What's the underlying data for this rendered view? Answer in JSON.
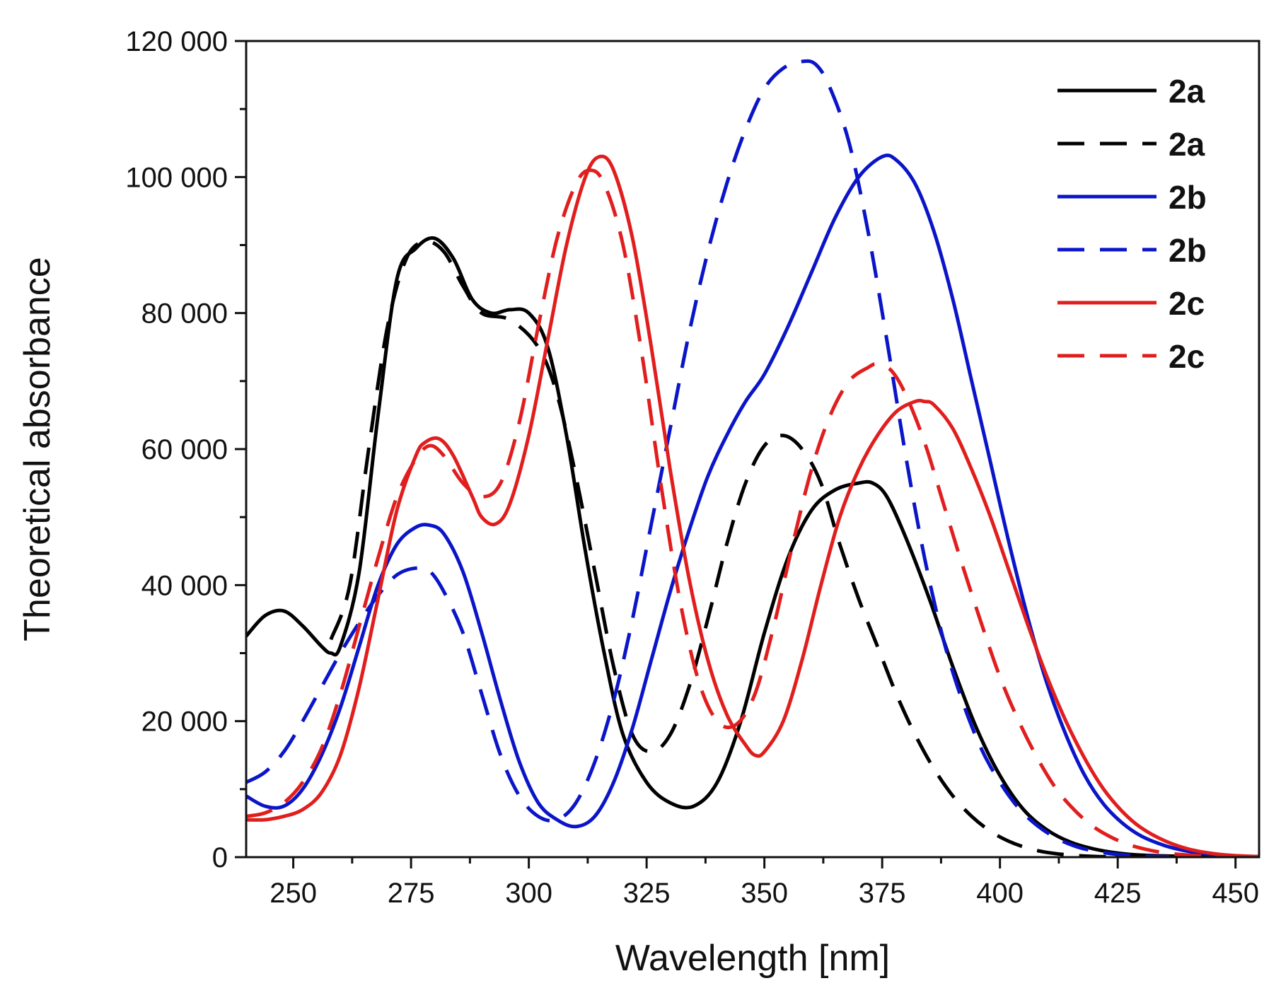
{
  "chart_data": {
    "type": "line",
    "title": "",
    "xlabel": "Wavelength [nm]",
    "ylabel": "Theoretical absorbance",
    "xlim": [
      240,
      455
    ],
    "ylim": [
      0,
      120000
    ],
    "xticks": [
      250,
      275,
      300,
      325,
      350,
      375,
      400,
      425,
      450
    ],
    "yticks": [
      0,
      20000,
      40000,
      60000,
      80000,
      100000,
      120000
    ],
    "xtick_labels": [
      "250",
      "275",
      "300",
      "325",
      "350",
      "375",
      "400",
      "425",
      "450"
    ],
    "ytick_labels": [
      "0",
      "20 000",
      "40 000",
      "60 000",
      "80 000",
      "100 000",
      "120 000"
    ],
    "grid": false,
    "legend_position": "top-right",
    "series": [
      {
        "name": "2a",
        "style": "solid",
        "color": "#000000",
        "x": [
          240,
          244,
          248,
          252,
          256,
          258,
          260,
          264,
          268,
          272,
          276,
          280,
          284,
          288,
          292,
          296,
          300,
          304,
          308,
          312,
          316,
          320,
          325,
          330,
          335,
          340,
          345,
          350,
          355,
          360,
          365,
          370,
          373,
          376,
          380,
          385,
          390,
          395,
          400,
          405,
          410,
          415,
          420,
          425,
          430,
          440,
          450,
          455
        ],
        "y": [
          32500,
          35500,
          36200,
          34000,
          31000,
          30000,
          31000,
          42000,
          65000,
          85000,
          89500,
          91000,
          88000,
          82000,
          80000,
          80500,
          80000,
          75000,
          62000,
          45000,
          30000,
          18000,
          11000,
          8000,
          7500,
          11000,
          20000,
          33000,
          44000,
          51000,
          54000,
          55000,
          55000,
          53000,
          47000,
          38000,
          28000,
          19000,
          12000,
          7000,
          4000,
          2200,
          1200,
          600,
          300,
          100,
          30,
          10
        ]
      },
      {
        "name": "2a",
        "style": "dashed",
        "color": "#000000",
        "x": [
          258,
          262,
          266,
          270,
          274,
          278,
          282,
          286,
          290,
          296,
          302,
          306,
          310,
          314,
          318,
          322,
          326,
          330,
          334,
          338,
          342,
          346,
          350,
          354,
          358,
          362,
          366,
          370,
          374,
          378,
          382,
          386,
          390,
          394,
          398,
          402,
          406,
          410,
          415,
          420,
          425
        ],
        "y": [
          32000,
          40000,
          60000,
          78000,
          88000,
          90500,
          89000,
          84000,
          80000,
          79000,
          75000,
          68000,
          56000,
          42000,
          28000,
          18000,
          15500,
          18000,
          25000,
          35000,
          46000,
          55000,
          60500,
          62000,
          60000,
          55000,
          46000,
          38000,
          31000,
          24000,
          18000,
          13000,
          9000,
          6000,
          3800,
          2300,
          1300,
          700,
          300,
          100,
          30
        ]
      },
      {
        "name": "2b",
        "style": "solid",
        "color": "#0b15c8",
        "x": [
          240,
          244,
          248,
          252,
          256,
          260,
          264,
          268,
          272,
          276,
          279,
          282,
          286,
          290,
          294,
          298,
          302,
          306,
          310,
          314,
          318,
          322,
          326,
          330,
          334,
          338,
          342,
          346,
          350,
          355,
          360,
          365,
          370,
          375,
          378,
          382,
          386,
          390,
          394,
          398,
          402,
          406,
          410,
          414,
          418,
          422,
          426,
          430,
          435,
          440,
          445,
          450,
          455
        ],
        "y": [
          9000,
          7500,
          7500,
          10000,
          15000,
          22000,
          31000,
          40000,
          46000,
          48500,
          48800,
          47500,
          42000,
          33000,
          23000,
          14000,
          8000,
          5500,
          4500,
          6000,
          11000,
          19000,
          29000,
          39000,
          48000,
          56000,
          62000,
          67000,
          71000,
          78000,
          86000,
          94000,
          100000,
          103000,
          102500,
          99000,
          92000,
          82000,
          70000,
          58000,
          46000,
          35000,
          25500,
          18000,
          12000,
          7800,
          5000,
          3100,
          1700,
          850,
          400,
          180,
          70
        ]
      },
      {
        "name": "2b",
        "style": "dashed",
        "color": "#0b15c8",
        "x": [
          240,
          244,
          248,
          252,
          256,
          260,
          264,
          268,
          272,
          276,
          279,
          282,
          286,
          290,
          294,
          298,
          302,
          306,
          310,
          314,
          318,
          322,
          326,
          330,
          334,
          338,
          342,
          346,
          350,
          354,
          358,
          361,
          364,
          368,
          372,
          376,
          380,
          384,
          388,
          392,
          396,
          400,
          404,
          408,
          412,
          416,
          420,
          424,
          428,
          432,
          436
        ],
        "y": [
          11000,
          12500,
          15500,
          20000,
          25000,
          30000,
          34500,
          38500,
          41500,
          42500,
          42000,
          39000,
          33000,
          24000,
          15000,
          9000,
          6000,
          5500,
          8000,
          14000,
          23000,
          35000,
          49000,
          63000,
          77000,
          89000,
          99000,
          107000,
          113000,
          116000,
          117000,
          116500,
          113000,
          105000,
          92000,
          76000,
          59000,
          44000,
          32000,
          23000,
          16000,
          11000,
          7200,
          4600,
          2800,
          1600,
          900,
          480,
          240,
          110,
          50
        ]
      },
      {
        "name": "2c",
        "style": "solid",
        "color": "#e11e1e",
        "x": [
          240,
          244,
          248,
          252,
          256,
          260,
          264,
          268,
          272,
          276,
          278,
          281,
          284,
          288,
          290,
          293,
          296,
          300,
          304,
          308,
          312,
          315,
          318,
          322,
          326,
          330,
          334,
          338,
          342,
          346,
          348,
          350,
          354,
          358,
          362,
          366,
          370,
          374,
          378,
          382,
          384,
          386,
          390,
          394,
          398,
          402,
          406,
          410,
          414,
          418,
          422,
          426,
          430,
          435,
          440,
          445,
          450,
          455
        ],
        "y": [
          5500,
          5500,
          6000,
          7000,
          9500,
          15000,
          25000,
          38000,
          51000,
          59000,
          61000,
          61500,
          59000,
          53000,
          50000,
          49000,
          52000,
          62000,
          76000,
          90000,
          100000,
          103000,
          101000,
          91000,
          75000,
          57000,
          41000,
          29000,
          21000,
          16500,
          15000,
          15500,
          20000,
          29000,
          40000,
          50000,
          57000,
          62000,
          65500,
          67000,
          67000,
          66500,
          63000,
          57000,
          50000,
          42000,
          34000,
          26500,
          20000,
          14500,
          10000,
          6700,
          4300,
          2400,
          1200,
          550,
          220,
          80
        ]
      },
      {
        "name": "2c",
        "style": "dashed",
        "color": "#e11e1e",
        "x": [
          240,
          244,
          248,
          252,
          256,
          260,
          264,
          268,
          272,
          276,
          279,
          282,
          286,
          290,
          294,
          298,
          302,
          306,
          310,
          313,
          316,
          320,
          324,
          328,
          332,
          336,
          340,
          344,
          348,
          352,
          356,
          360,
          364,
          368,
          372,
          374,
          377,
          380,
          384,
          388,
          392,
          396,
          400,
          404,
          408,
          412,
          416,
          420,
          424,
          428,
          432,
          436,
          440,
          445,
          450
        ],
        "y": [
          6000,
          6500,
          8000,
          11000,
          16000,
          24000,
          34000,
          44000,
          53000,
          58500,
          60500,
          59000,
          55000,
          53000,
          55000,
          64000,
          78000,
          91000,
          99000,
          101000,
          99000,
          90000,
          74000,
          55000,
          38000,
          26000,
          20000,
          19500,
          24000,
          34000,
          46000,
          57000,
          65000,
          70000,
          72000,
          72500,
          71500,
          68000,
          61000,
          52000,
          43000,
          34500,
          26500,
          20000,
          14500,
          10000,
          6800,
          4400,
          2800,
          1700,
          1000,
          550,
          300,
          120,
          40
        ]
      }
    ]
  }
}
